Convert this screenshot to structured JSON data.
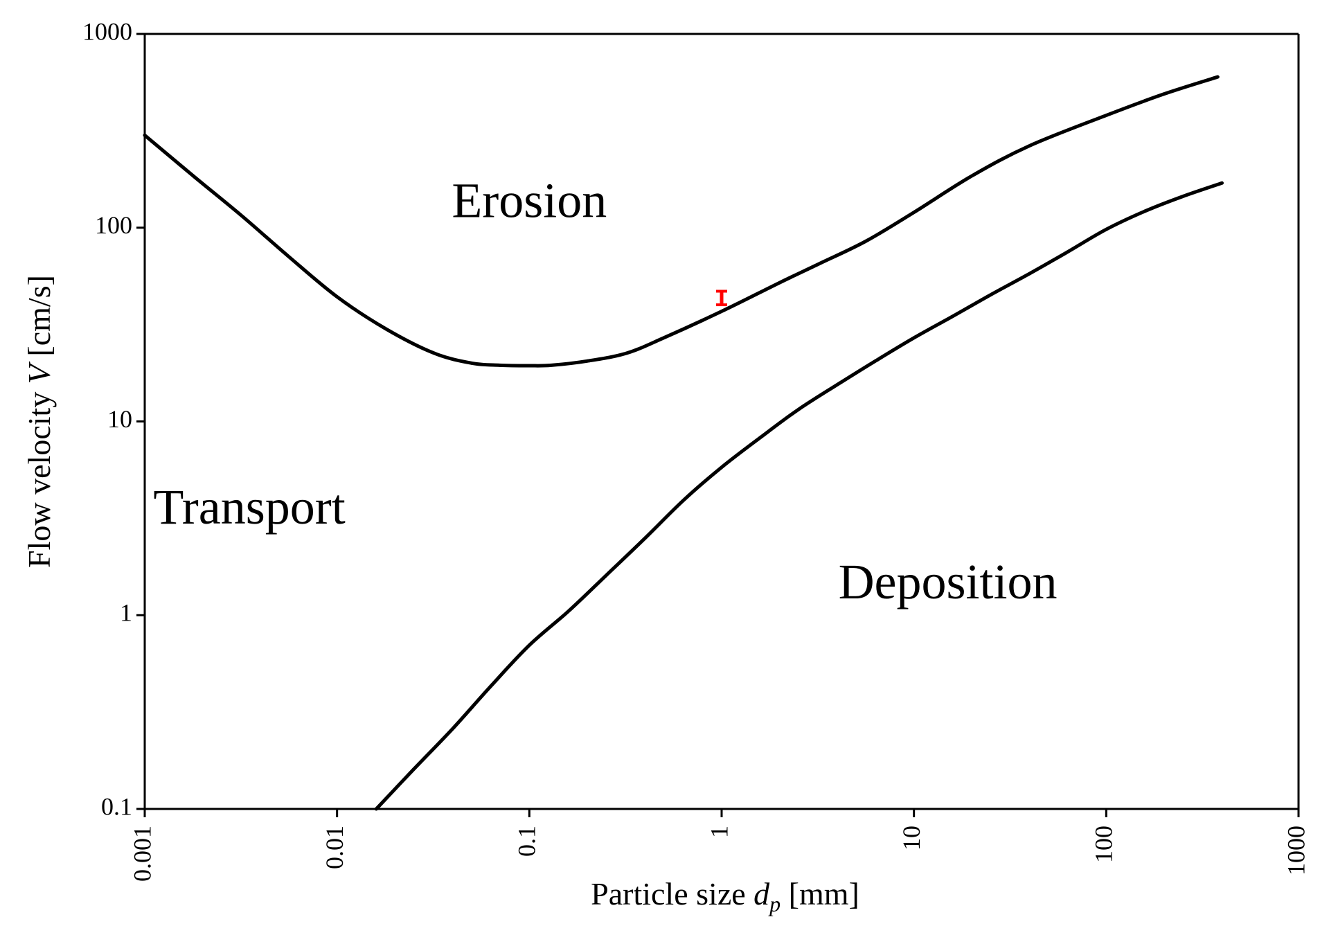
{
  "chart_data": {
    "type": "line",
    "xlabel": {
      "prefix": "Particle size ",
      "symbol": "d",
      "subscript": "p",
      "suffix": " [mm]"
    },
    "ylabel": {
      "prefix": "Flow velocity ",
      "symbol": "V",
      "suffix": " [cm/s]"
    },
    "xscale": "log",
    "yscale": "log",
    "xlim": [
      0.001,
      1000
    ],
    "ylim": [
      0.1,
      1000
    ],
    "xticks": [
      0.001,
      0.01,
      0.1,
      1,
      10,
      100,
      1000
    ],
    "xtick_labels": [
      "0.001",
      "0.01",
      "0.1",
      "1",
      "10",
      "100",
      "1000"
    ],
    "yticks": [
      0.1,
      1,
      10,
      100,
      1000
    ],
    "ytick_labels": [
      "0.1",
      "1",
      "10",
      "100",
      "1000"
    ],
    "grid": false,
    "legend": "none",
    "series": [
      {
        "color": "#000000",
        "x": [
          0.001,
          0.0018,
          0.0032,
          0.0056,
          0.01,
          0.018,
          0.032,
          0.05,
          0.07,
          0.1,
          0.13,
          0.2,
          0.32,
          0.5,
          1,
          2,
          3.2,
          5.6,
          10,
          20,
          40,
          100,
          200,
          380
        ],
        "y": [
          300,
          184,
          115,
          71,
          44,
          30,
          22.5,
          20,
          19.5,
          19.4,
          19.5,
          20.5,
          22.5,
          27,
          37,
          52,
          65,
          85,
          120,
          185,
          265,
          380,
          490,
          600
        ]
      },
      {
        "color": "#000000",
        "x": [
          0.016,
          0.025,
          0.04,
          0.063,
          0.1,
          0.16,
          0.25,
          0.4,
          0.63,
          1,
          1.6,
          2.5,
          4,
          6.3,
          10,
          16,
          25,
          40,
          63,
          100,
          160,
          250,
          400
        ],
        "y": [
          0.1,
          0.16,
          0.26,
          0.43,
          0.7,
          1.05,
          1.6,
          2.5,
          3.9,
          5.8,
          8.3,
          11.5,
          15.5,
          20.5,
          27,
          35,
          45,
          58,
          75,
          98,
          122,
          145,
          170
        ]
      }
    ],
    "error_bars": [
      {
        "x": 1,
        "y": 43,
        "y_low": 40,
        "y_high": 47,
        "color": "#ff0000"
      }
    ],
    "annotations": [
      {
        "text": "Erosion",
        "x": 0.1,
        "y": 130
      },
      {
        "text": "Transport",
        "x": 0.0035,
        "y": 3.4
      },
      {
        "text": "Deposition",
        "x": 15,
        "y": 1.4
      }
    ]
  }
}
